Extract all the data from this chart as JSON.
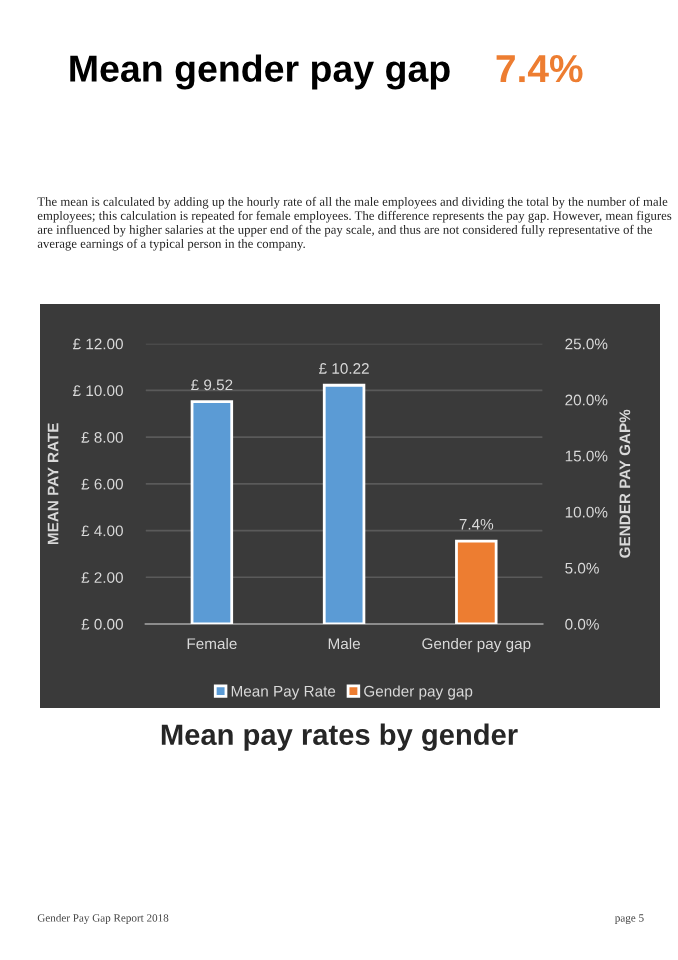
{
  "chart_data": {
    "type": "bar",
    "title": "Mean gender pay gap",
    "subtitle": "7.4%",
    "annotations": [
      "The mean is calculated by adding up the hourly rate of all the male employees and dividing the total by the number of male employees; this calculation is repeated for female employees. The difference represents the pay gap. However, mean figures are influenced by higher salaries at the upper end of the pay scale, and thus are not considered fully representative of the average earnings of a typical person in the company.",
      "Mean pay rates by gender",
      "Gender Pay Gap Report 2018",
      "page 5"
    ],
    "categories": [
      "Female",
      "Male",
      "Gender pay gap"
    ],
    "series": [
      {
        "name": "Mean Pay Rate",
        "color": "#5b9bd5",
        "values": [
          9.52,
          10.22,
          null
        ],
        "value_labels": [
          "£ 9.52",
          "£ 10.22",
          null
        ]
      },
      {
        "name": "Gender pay gap",
        "color": "#ed7d31",
        "axis": "y2",
        "values": [
          null,
          null,
          7.4
        ],
        "value_labels": [
          null,
          null,
          "7.4%"
        ]
      }
    ],
    "ylabel": "MEAN PAY RATE",
    "y2label": "GENDER PAY GAP%",
    "ylim": [
      0,
      12
    ],
    "yticks": [
      {
        "value": 0,
        "label": "£ 0.00"
      },
      {
        "value": 2,
        "label": "£ 2.00"
      },
      {
        "value": 4,
        "label": "£ 4.00"
      },
      {
        "value": 6,
        "label": "£ 6.00"
      },
      {
        "value": 8,
        "label": "£ 8.00"
      },
      {
        "value": 10,
        "label": "£ 10.00"
      },
      {
        "value": 12,
        "label": "£ 12.00"
      }
    ],
    "y2lim": [
      0,
      25
    ],
    "y2ticks": [
      {
        "value": 0,
        "label": "0.0%"
      },
      {
        "value": 5,
        "label": "5.0%"
      },
      {
        "value": 10,
        "label": "10.0%"
      },
      {
        "value": 15,
        "label": "15.0%"
      },
      {
        "value": 20,
        "label": "20.0%"
      },
      {
        "value": 25,
        "label": "25.0%"
      }
    ],
    "grid": "y",
    "legend": "bottom"
  }
}
